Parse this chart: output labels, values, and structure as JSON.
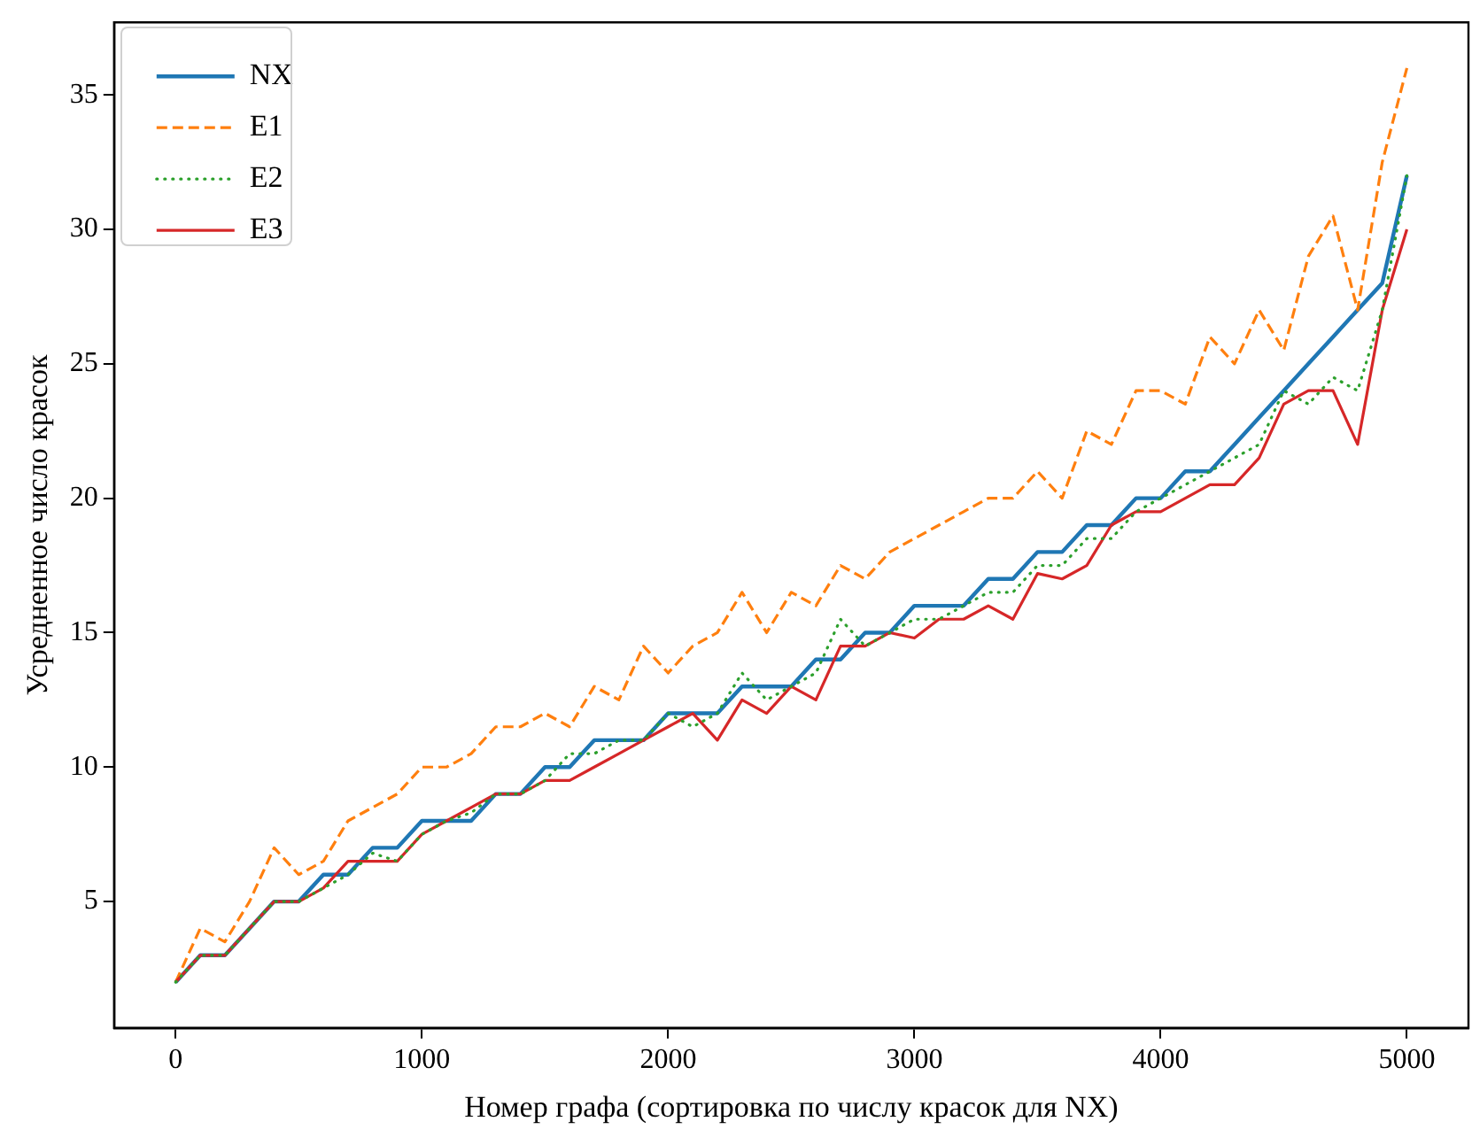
{
  "chart_data": {
    "type": "line",
    "xlabel": "Номер графа (сортировка по числу красок для NX)",
    "ylabel": "Усредненное число красок",
    "x": [
      0,
      100,
      200,
      300,
      400,
      500,
      600,
      700,
      800,
      900,
      1000,
      1100,
      1200,
      1300,
      1400,
      1500,
      1600,
      1700,
      1800,
      1900,
      2000,
      2100,
      2200,
      2300,
      2400,
      2500,
      2600,
      2700,
      2800,
      2900,
      3000,
      3100,
      3200,
      3300,
      3400,
      3500,
      3600,
      3700,
      3800,
      3900,
      4000,
      4100,
      4200,
      4300,
      4400,
      4500,
      4600,
      4700,
      4800,
      4900,
      5000
    ],
    "series": [
      {
        "name": "NX",
        "color": "#1f77b4",
        "line_style": "solid",
        "values": [
          2,
          3,
          3,
          4,
          5,
          5,
          6,
          6,
          7,
          7,
          8,
          8,
          8,
          9,
          9,
          10,
          10,
          11,
          11,
          11,
          12,
          12,
          12,
          13,
          13,
          13,
          14,
          14,
          15,
          15,
          16,
          16,
          16,
          17,
          17,
          18,
          18,
          19,
          19,
          20,
          20,
          21,
          21,
          22,
          23,
          24,
          25,
          26,
          27,
          28,
          32
        ]
      },
      {
        "name": "E1",
        "color": "#ff7f0e",
        "line_style": "dashed",
        "values": [
          2,
          4,
          3.5,
          5,
          7,
          6,
          6.5,
          8,
          8.5,
          9,
          10,
          10,
          10.5,
          11.5,
          11.5,
          12,
          11.5,
          13,
          12.5,
          14.5,
          13.5,
          14.5,
          15,
          16.5,
          15,
          16.5,
          16,
          17.5,
          17,
          18,
          18.5,
          19,
          19.5,
          20,
          20,
          21,
          20,
          22.5,
          22,
          24,
          24,
          23.5,
          26,
          25,
          27,
          25.5,
          29,
          30.5,
          27,
          32.5,
          36
        ]
      },
      {
        "name": "E2",
        "color": "#2ca02c",
        "line_style": "dotted",
        "values": [
          2,
          3,
          3,
          4,
          5,
          5,
          5.5,
          6,
          6.8,
          6.5,
          7.5,
          8,
          8.3,
          9,
          9,
          9.5,
          10.5,
          10.5,
          11,
          11,
          12,
          11.5,
          12,
          13.5,
          12.5,
          13,
          13.5,
          15.5,
          14.5,
          15,
          15.5,
          15.5,
          16,
          16.5,
          16.5,
          17.5,
          17.5,
          18.5,
          18.5,
          19.5,
          20,
          20.5,
          21,
          21.5,
          22,
          24,
          23.5,
          24.5,
          24,
          27,
          32
        ]
      },
      {
        "name": "E3",
        "color": "#d62728",
        "line_style": "solid",
        "values": [
          2,
          3,
          3,
          4,
          5,
          5,
          5.5,
          6.5,
          6.5,
          6.5,
          7.5,
          8,
          8.5,
          9,
          9,
          9.5,
          9.5,
          10,
          10.5,
          11,
          11.5,
          12,
          11,
          12.5,
          12,
          13,
          12.5,
          14.5,
          14.5,
          15,
          14.8,
          15.5,
          15.5,
          16,
          15.5,
          17.2,
          17,
          17.5,
          19,
          19.5,
          19.5,
          20,
          20.5,
          20.5,
          21.5,
          23.5,
          24,
          24,
          22,
          27,
          30
        ]
      }
    ],
    "xlim": [
      -250,
      5250
    ],
    "xticks": [
      0,
      1000,
      2000,
      3000,
      4000,
      5000
    ],
    "ylim": [
      0.3,
      37.7
    ],
    "yticks": [
      5,
      10,
      15,
      20,
      25,
      30,
      35
    ],
    "grid": false,
    "legend": "top left",
    "marker": "none"
  }
}
